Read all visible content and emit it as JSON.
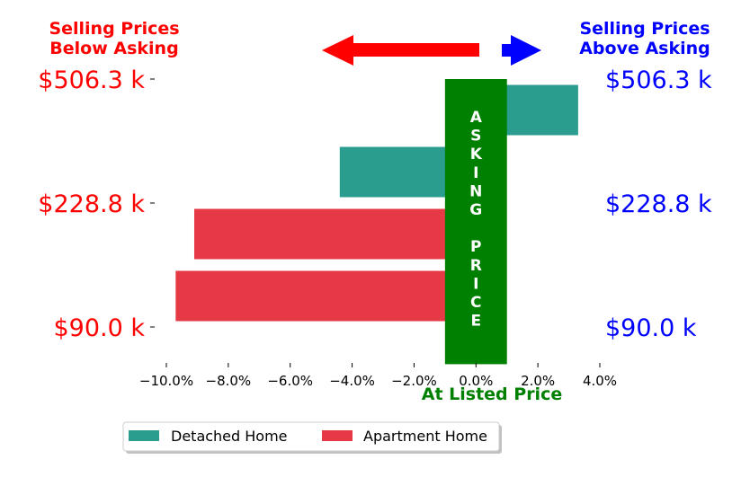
{
  "colors": {
    "below": "#ff0000",
    "above": "#0000ff",
    "asking": "#008000",
    "detached": "#2a9d8f",
    "apartment": "#e63946"
  },
  "header": {
    "left_line1": "Selling Prices",
    "left_line2": "Below Asking",
    "right_line1": "Selling Prices",
    "right_line2": "Above Asking"
  },
  "asking_band": {
    "letters": [
      "A",
      "S",
      "K",
      "I",
      "N",
      "G",
      " ",
      "P",
      "R",
      "I",
      "C",
      "E"
    ],
    "xlabel": "At Listed Price"
  },
  "legend": {
    "detached": "Detached Home",
    "apartment": "Apartment Home"
  },
  "chart_data": {
    "type": "bar",
    "orientation": "horizontal",
    "xlim": [
      -10.0,
      4.0
    ],
    "xticks": [
      -10.0,
      -8.0,
      -6.0,
      -4.0,
      -2.0,
      0.0,
      2.0,
      4.0
    ],
    "xtick_labels": [
      "−10.0%",
      "−8.0%",
      "−6.0%",
      "−4.0%",
      "−2.0%",
      "0.0%",
      "2.0%",
      "4.0%"
    ],
    "xlabel": "At Listed Price",
    "asking_band": [
      -1.0,
      1.0
    ],
    "price_labels": [
      "$506.3 k",
      "$228.8 k",
      "$90.0 k"
    ],
    "series": [
      {
        "name": "Detached Home",
        "color": "#2a9d8f",
        "bars": [
          {
            "row": 0.5,
            "value": 3.3
          },
          {
            "row": 1.5,
            "value": -4.4
          }
        ]
      },
      {
        "name": "Apartment Home",
        "color": "#e63946",
        "bars": [
          {
            "row": 2.5,
            "value": -9.1
          },
          {
            "row": 3.5,
            "value": -9.7
          }
        ]
      }
    ],
    "legend_position": "bottom",
    "grid": false
  }
}
